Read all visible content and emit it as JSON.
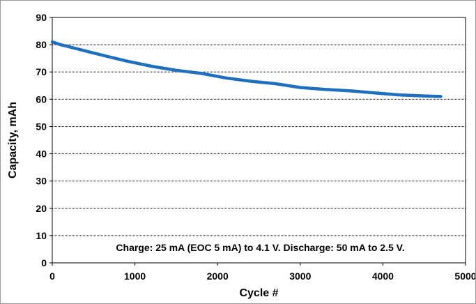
{
  "chart_data": {
    "type": "line",
    "xlabel": "Cycle #",
    "ylabel": "Capacity, mAh",
    "xlim": [
      0,
      5000
    ],
    "ylim": [
      0,
      90
    ],
    "x_ticks": [
      "0",
      "1000",
      "2000",
      "3000",
      "4000",
      "5000"
    ],
    "y_ticks": [
      "0",
      "10",
      "20",
      "30",
      "40",
      "50",
      "60",
      "70",
      "80",
      "90"
    ],
    "grid": "horizontal dotted",
    "annotation": "Charge: 25 mA (EOC 5 mA) to 4.1 V.   Discharge: 50 mA to 2.5 V.",
    "series": [
      {
        "color": "#1f6fbf",
        "x": [
          0,
          100,
          300,
          600,
          900,
          1200,
          1500,
          1800,
          2100,
          2400,
          2700,
          3000,
          3300,
          3600,
          3900,
          4200,
          4500,
          4700
        ],
        "y": [
          81,
          80,
          78.5,
          76.2,
          74.0,
          72.1,
          70.6,
          69.5,
          67.8,
          66.6,
          65.7,
          64.3,
          63.6,
          63.1,
          62.3,
          61.6,
          61.2,
          61
        ]
      }
    ]
  }
}
